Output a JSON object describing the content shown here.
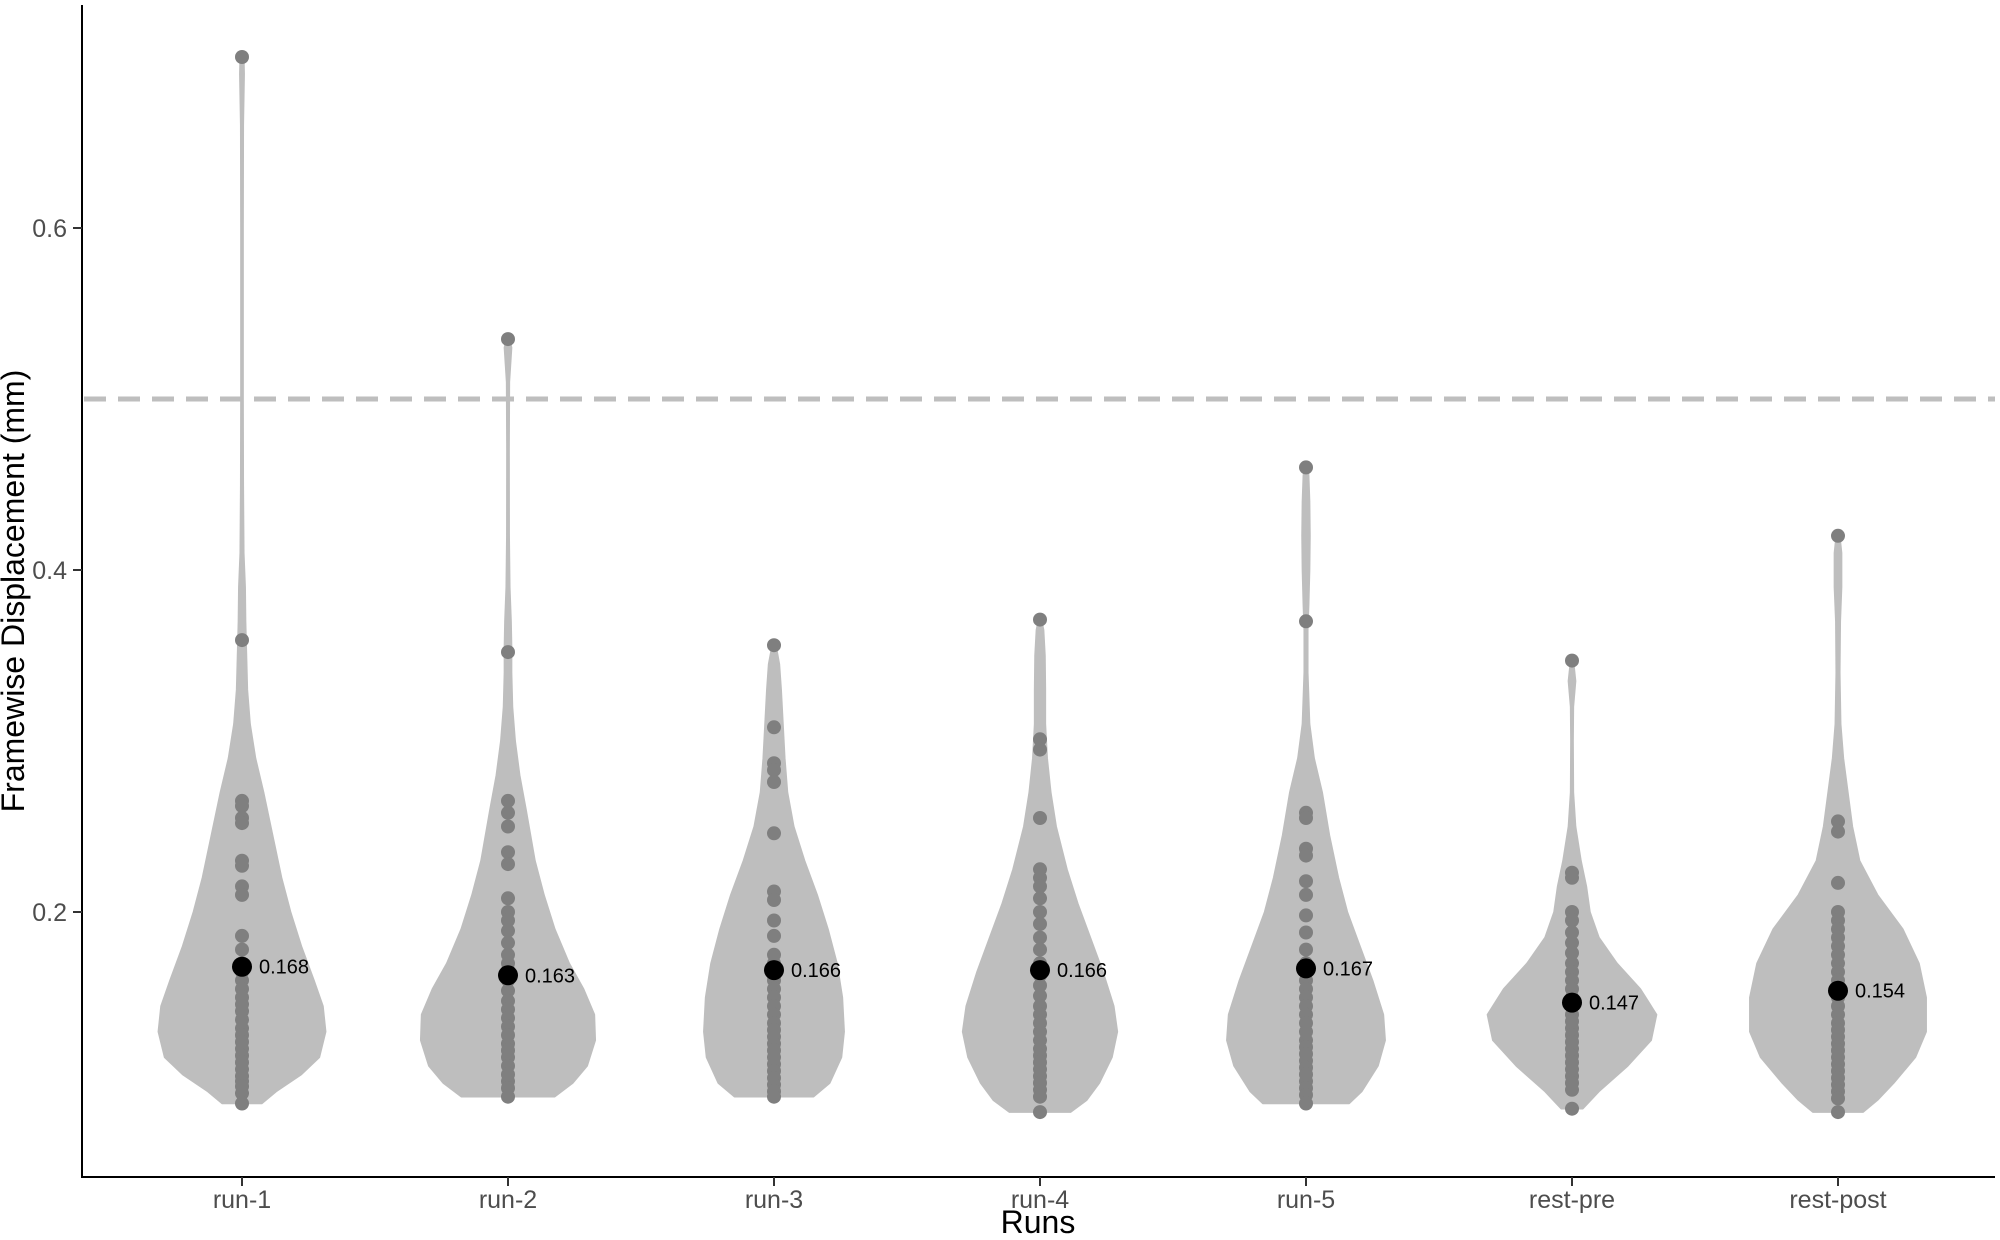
{
  "chart_data": {
    "type": "violin",
    "title": "",
    "xlabel": "Runs",
    "ylabel": "Framewise Displacement (mm)",
    "ylim": [
      0.05,
      0.715
    ],
    "yticks": [
      0.2,
      0.4,
      0.6
    ],
    "ytick_labels": [
      "0.2",
      "0.4",
      "0.6"
    ],
    "threshold": 0.5,
    "grid": false,
    "colors": {
      "violin": "#bebebe",
      "points": "#7f7f7f",
      "mean": "#000000",
      "threshold": "#bebebe",
      "axis": "#000000"
    },
    "categories": [
      "run-1",
      "run-2",
      "run-3",
      "run-4",
      "run-5",
      "rest-pre",
      "rest-post"
    ],
    "series": [
      {
        "category": "run-1",
        "mean": 0.168,
        "mean_label": "0.168",
        "points": [
          0.7,
          0.359,
          0.265,
          0.262,
          0.255,
          0.252,
          0.23,
          0.227,
          0.215,
          0.21,
          0.186,
          0.178,
          0.17,
          0.165,
          0.16,
          0.155,
          0.15,
          0.146,
          0.142,
          0.137,
          0.132,
          0.128,
          0.124,
          0.12,
          0.116,
          0.112,
          0.108,
          0.104,
          0.101,
          0.098,
          0.094,
          0.088
        ],
        "violin": [
          [
            0.088,
            0.22
          ],
          [
            0.095,
            0.38
          ],
          [
            0.105,
            0.66
          ],
          [
            0.115,
            0.86
          ],
          [
            0.13,
            0.93
          ],
          [
            0.145,
            0.9
          ],
          [
            0.16,
            0.8
          ],
          [
            0.18,
            0.66
          ],
          [
            0.2,
            0.54
          ],
          [
            0.22,
            0.44
          ],
          [
            0.25,
            0.32
          ],
          [
            0.27,
            0.24
          ],
          [
            0.29,
            0.15
          ],
          [
            0.31,
            0.09
          ],
          [
            0.33,
            0.06
          ],
          [
            0.35,
            0.05
          ],
          [
            0.37,
            0.04
          ],
          [
            0.39,
            0.035
          ],
          [
            0.41,
            0.02
          ],
          [
            0.45,
            0.014
          ],
          [
            0.5,
            0.012
          ],
          [
            0.6,
            0.012
          ],
          [
            0.66,
            0.014
          ],
          [
            0.69,
            0.024
          ],
          [
            0.7,
            0.02
          ]
        ]
      },
      {
        "category": "run-2",
        "mean": 0.163,
        "mean_label": "0.163",
        "points": [
          0.535,
          0.352,
          0.265,
          0.258,
          0.25,
          0.235,
          0.228,
          0.208,
          0.2,
          0.195,
          0.189,
          0.182,
          0.175,
          0.17,
          0.166,
          0.16,
          0.154,
          0.148,
          0.143,
          0.138,
          0.133,
          0.128,
          0.123,
          0.119,
          0.115,
          0.11,
          0.105,
          0.101,
          0.097,
          0.092
        ],
        "violin": [
          [
            0.092,
            0.52
          ],
          [
            0.1,
            0.72
          ],
          [
            0.11,
            0.88
          ],
          [
            0.125,
            0.97
          ],
          [
            0.14,
            0.96
          ],
          [
            0.155,
            0.84
          ],
          [
            0.17,
            0.68
          ],
          [
            0.19,
            0.52
          ],
          [
            0.21,
            0.4
          ],
          [
            0.23,
            0.3
          ],
          [
            0.26,
            0.2
          ],
          [
            0.28,
            0.13
          ],
          [
            0.3,
            0.08
          ],
          [
            0.32,
            0.05
          ],
          [
            0.34,
            0.04
          ],
          [
            0.355,
            0.04
          ],
          [
            0.37,
            0.035
          ],
          [
            0.39,
            0.02
          ],
          [
            0.42,
            0.013
          ],
          [
            0.47,
            0.012
          ],
          [
            0.51,
            0.016
          ],
          [
            0.53,
            0.04
          ],
          [
            0.535,
            0.02
          ]
        ]
      },
      {
        "category": "run-3",
        "mean": 0.166,
        "mean_label": "0.166",
        "points": [
          0.356,
          0.308,
          0.287,
          0.283,
          0.276,
          0.246,
          0.212,
          0.207,
          0.195,
          0.186,
          0.175,
          0.17,
          0.165,
          0.16,
          0.155,
          0.15,
          0.145,
          0.14,
          0.135,
          0.131,
          0.127,
          0.123,
          0.119,
          0.115,
          0.111,
          0.107,
          0.103,
          0.099,
          0.095,
          0.092
        ],
        "violin": [
          [
            0.092,
            0.44
          ],
          [
            0.1,
            0.62
          ],
          [
            0.115,
            0.75
          ],
          [
            0.13,
            0.78
          ],
          [
            0.15,
            0.76
          ],
          [
            0.17,
            0.7
          ],
          [
            0.19,
            0.6
          ],
          [
            0.21,
            0.48
          ],
          [
            0.23,
            0.34
          ],
          [
            0.25,
            0.22
          ],
          [
            0.27,
            0.15
          ],
          [
            0.29,
            0.12
          ],
          [
            0.31,
            0.1
          ],
          [
            0.33,
            0.08
          ],
          [
            0.345,
            0.06
          ],
          [
            0.355,
            0.025
          ]
        ]
      },
      {
        "category": "run-4",
        "mean": 0.166,
        "mean_label": "0.166",
        "points": [
          0.371,
          0.301,
          0.295,
          0.255,
          0.225,
          0.22,
          0.215,
          0.208,
          0.2,
          0.193,
          0.185,
          0.178,
          0.17,
          0.163,
          0.157,
          0.151,
          0.145,
          0.14,
          0.135,
          0.13,
          0.125,
          0.12,
          0.116,
          0.112,
          0.108,
          0.104,
          0.1,
          0.096,
          0.092,
          0.083
        ],
        "violin": [
          [
            0.083,
            0.34
          ],
          [
            0.09,
            0.52
          ],
          [
            0.1,
            0.66
          ],
          [
            0.115,
            0.8
          ],
          [
            0.13,
            0.86
          ],
          [
            0.145,
            0.82
          ],
          [
            0.165,
            0.7
          ],
          [
            0.185,
            0.56
          ],
          [
            0.205,
            0.42
          ],
          [
            0.225,
            0.3
          ],
          [
            0.25,
            0.18
          ],
          [
            0.27,
            0.12
          ],
          [
            0.29,
            0.08
          ],
          [
            0.31,
            0.06
          ],
          [
            0.33,
            0.06
          ],
          [
            0.35,
            0.055
          ],
          [
            0.365,
            0.04
          ],
          [
            0.37,
            0.02
          ]
        ]
      },
      {
        "category": "run-5",
        "mean": 0.167,
        "mean_label": "0.167",
        "points": [
          0.46,
          0.37,
          0.258,
          0.255,
          0.237,
          0.233,
          0.218,
          0.21,
          0.198,
          0.188,
          0.178,
          0.17,
          0.165,
          0.16,
          0.155,
          0.15,
          0.145,
          0.14,
          0.135,
          0.13,
          0.125,
          0.121,
          0.117,
          0.113,
          0.109,
          0.105,
          0.101,
          0.097,
          0.093,
          0.088
        ],
        "violin": [
          [
            0.088,
            0.48
          ],
          [
            0.095,
            0.62
          ],
          [
            0.11,
            0.8
          ],
          [
            0.125,
            0.88
          ],
          [
            0.14,
            0.86
          ],
          [
            0.16,
            0.74
          ],
          [
            0.18,
            0.6
          ],
          [
            0.2,
            0.46
          ],
          [
            0.22,
            0.36
          ],
          [
            0.245,
            0.26
          ],
          [
            0.27,
            0.18
          ],
          [
            0.29,
            0.09
          ],
          [
            0.31,
            0.04
          ],
          [
            0.34,
            0.02
          ],
          [
            0.365,
            0.02
          ],
          [
            0.38,
            0.03
          ],
          [
            0.4,
            0.04
          ],
          [
            0.42,
            0.045
          ],
          [
            0.44,
            0.04
          ],
          [
            0.455,
            0.03
          ],
          [
            0.46,
            0.02
          ]
        ]
      },
      {
        "category": "rest-pre",
        "mean": 0.147,
        "mean_label": "0.147",
        "points": [
          0.347,
          0.223,
          0.22,
          0.2,
          0.195,
          0.188,
          0.182,
          0.176,
          0.17,
          0.165,
          0.16,
          0.155,
          0.15,
          0.145,
          0.14,
          0.136,
          0.132,
          0.128,
          0.124,
          0.12,
          0.116,
          0.112,
          0.108,
          0.104,
          0.1,
          0.096,
          0.085
        ],
        "violin": [
          [
            0.085,
            0.12
          ],
          [
            0.095,
            0.3
          ],
          [
            0.11,
            0.62
          ],
          [
            0.125,
            0.88
          ],
          [
            0.14,
            0.94
          ],
          [
            0.155,
            0.76
          ],
          [
            0.17,
            0.5
          ],
          [
            0.185,
            0.3
          ],
          [
            0.2,
            0.2
          ],
          [
            0.215,
            0.16
          ],
          [
            0.23,
            0.1
          ],
          [
            0.25,
            0.04
          ],
          [
            0.27,
            0.016
          ],
          [
            0.3,
            0.012
          ],
          [
            0.32,
            0.016
          ],
          [
            0.335,
            0.04
          ],
          [
            0.345,
            0.02
          ]
        ]
      },
      {
        "category": "rest-post",
        "mean": 0.154,
        "mean_label": "0.154",
        "points": [
          0.42,
          0.253,
          0.247,
          0.217,
          0.2,
          0.195,
          0.19,
          0.185,
          0.18,
          0.175,
          0.17,
          0.165,
          0.16,
          0.155,
          0.15,
          0.145,
          0.14,
          0.135,
          0.131,
          0.127,
          0.123,
          0.119,
          0.115,
          0.111,
          0.107,
          0.103,
          0.099,
          0.095,
          0.091,
          0.083
        ],
        "violin": [
          [
            0.083,
            0.28
          ],
          [
            0.09,
            0.44
          ],
          [
            0.1,
            0.62
          ],
          [
            0.115,
            0.86
          ],
          [
            0.13,
            0.98
          ],
          [
            0.15,
            0.98
          ],
          [
            0.17,
            0.9
          ],
          [
            0.19,
            0.72
          ],
          [
            0.21,
            0.44
          ],
          [
            0.23,
            0.24
          ],
          [
            0.25,
            0.16
          ],
          [
            0.27,
            0.11
          ],
          [
            0.29,
            0.06
          ],
          [
            0.31,
            0.03
          ],
          [
            0.34,
            0.02
          ],
          [
            0.37,
            0.025
          ],
          [
            0.39,
            0.04
          ],
          [
            0.41,
            0.04
          ],
          [
            0.42,
            0.02
          ]
        ]
      }
    ]
  }
}
